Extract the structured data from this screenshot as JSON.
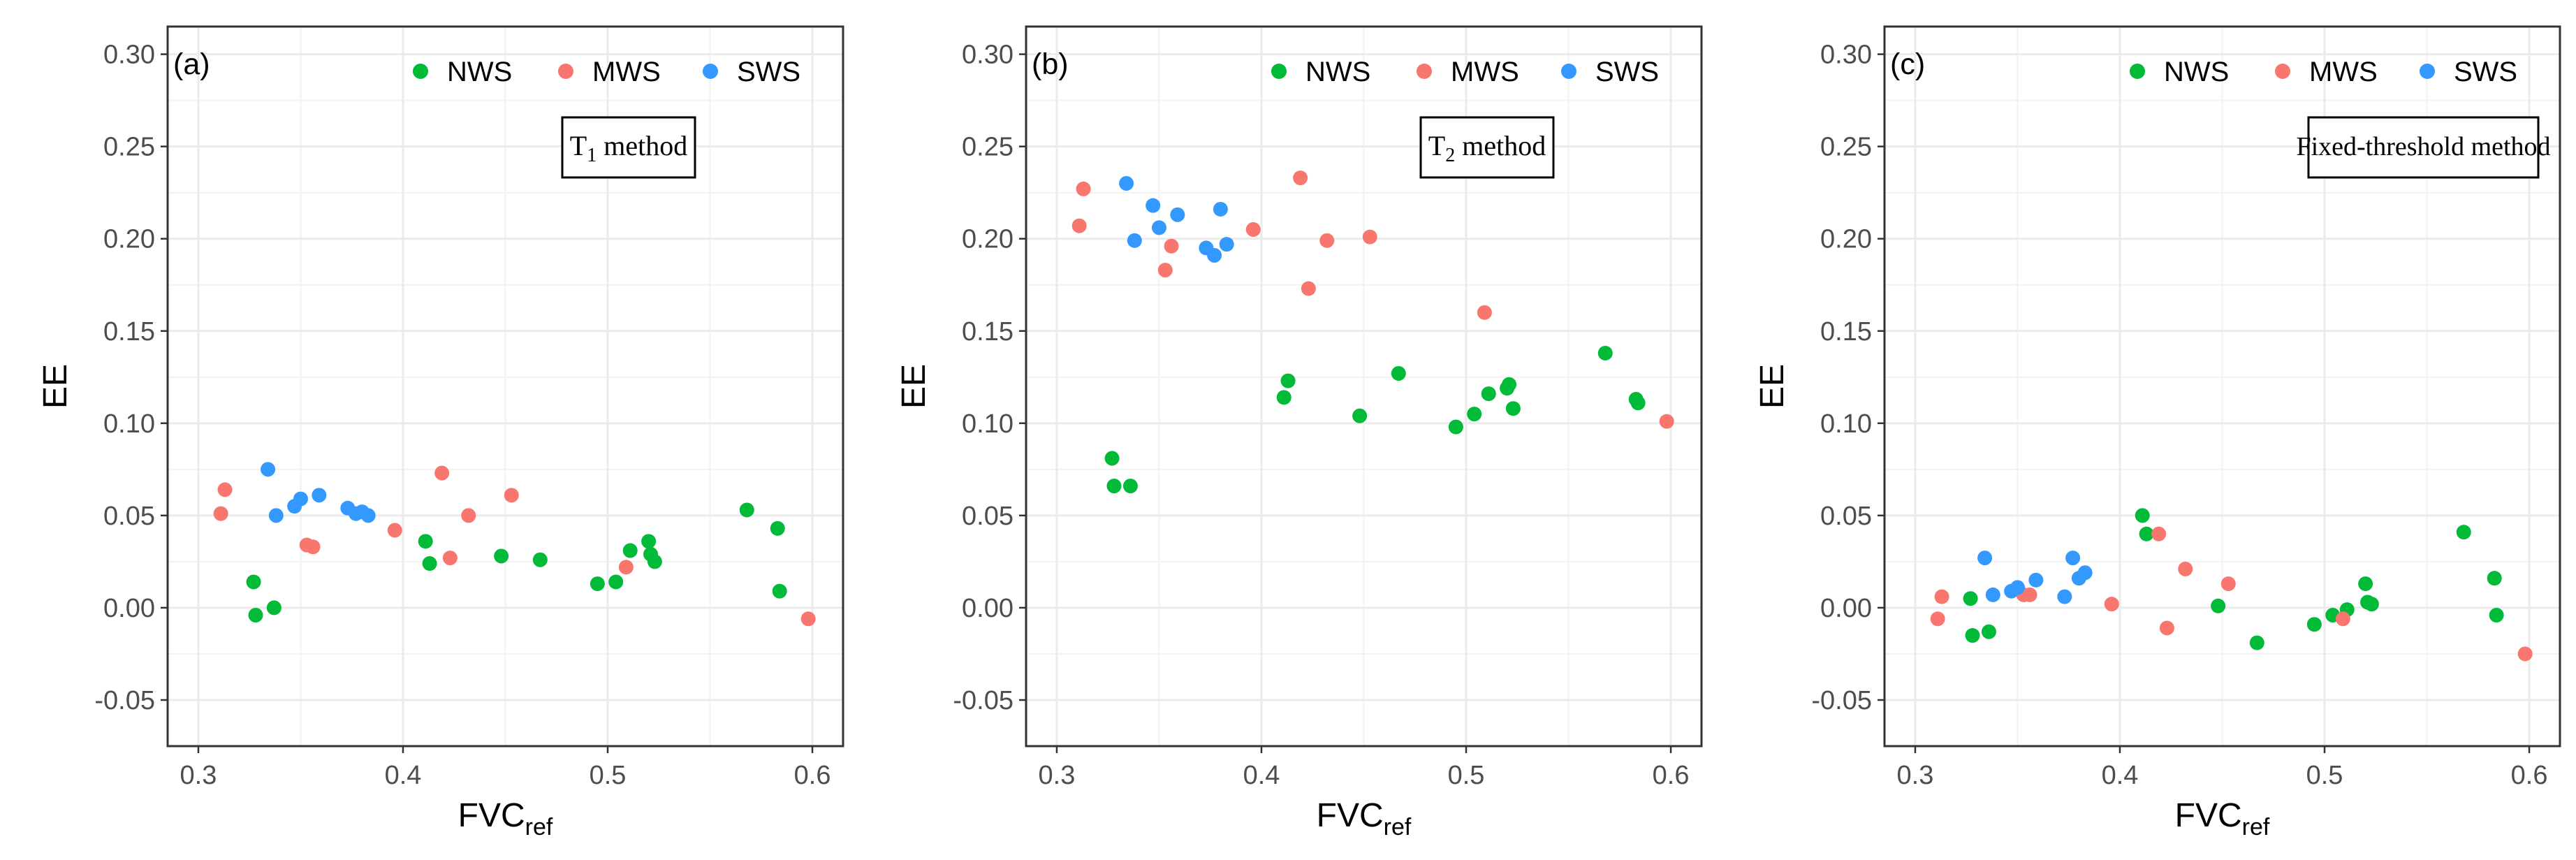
{
  "colors": {
    "NWS": "#00BA38",
    "MWS": "#F8766D",
    "SWS": "#3399FF",
    "grid": "#ebebeb",
    "frame": "#333333",
    "axis_text": "#4d4d4d"
  },
  "chart_data": [
    {
      "type": "scatter",
      "panel_label": "(a)",
      "method_label_main": "T",
      "method_label_sub": "1",
      "method_label_rest": " method",
      "xlabel_main": "FVC",
      "xlabel_sub": "ref",
      "ylabel": "EE",
      "xlim": [
        0.285,
        0.615
      ],
      "ylim": [
        -0.075,
        0.315
      ],
      "xticks": [
        0.3,
        0.4,
        0.5,
        0.6
      ],
      "xtick_labels": [
        "0.3",
        "0.4",
        "0.5",
        "0.6"
      ],
      "yticks": [
        -0.05,
        0.0,
        0.05,
        0.1,
        0.15,
        0.2,
        0.25,
        0.3
      ],
      "ytick_labels": [
        "-0.05",
        "0.00",
        "0.05",
        "0.10",
        "0.15",
        "0.20",
        "0.25",
        "0.30"
      ],
      "legend_position": "top-right",
      "series": [
        {
          "name": "NWS",
          "points": [
            [
              0.327,
              0.014
            ],
            [
              0.328,
              -0.004
            ],
            [
              0.337,
              0.0
            ],
            [
              0.411,
              0.036
            ],
            [
              0.413,
              0.024
            ],
            [
              0.448,
              0.028
            ],
            [
              0.467,
              0.026
            ],
            [
              0.495,
              0.013
            ],
            [
              0.504,
              0.014
            ],
            [
              0.511,
              0.031
            ],
            [
              0.52,
              0.036
            ],
            [
              0.521,
              0.029
            ],
            [
              0.523,
              0.025
            ],
            [
              0.568,
              0.053
            ],
            [
              0.583,
              0.043
            ],
            [
              0.584,
              0.009
            ]
          ]
        },
        {
          "name": "MWS",
          "points": [
            [
              0.311,
              0.051
            ],
            [
              0.313,
              0.064
            ],
            [
              0.353,
              0.034
            ],
            [
              0.356,
              0.033
            ],
            [
              0.396,
              0.042
            ],
            [
              0.419,
              0.073
            ],
            [
              0.423,
              0.027
            ],
            [
              0.432,
              0.05
            ],
            [
              0.453,
              0.061
            ],
            [
              0.509,
              0.022
            ],
            [
              0.598,
              -0.006
            ]
          ]
        },
        {
          "name": "SWS",
          "points": [
            [
              0.334,
              0.075
            ],
            [
              0.338,
              0.05
            ],
            [
              0.347,
              0.055
            ],
            [
              0.35,
              0.059
            ],
            [
              0.359,
              0.061
            ],
            [
              0.373,
              0.054
            ],
            [
              0.377,
              0.051
            ],
            [
              0.38,
              0.052
            ],
            [
              0.383,
              0.05
            ]
          ]
        }
      ]
    },
    {
      "type": "scatter",
      "panel_label": "(b)",
      "method_label_main": "T",
      "method_label_sub": "2",
      "method_label_rest": " method",
      "xlabel_main": "FVC",
      "xlabel_sub": "ref",
      "ylabel": "EE",
      "xlim": [
        0.285,
        0.615
      ],
      "ylim": [
        -0.075,
        0.315
      ],
      "xticks": [
        0.3,
        0.4,
        0.5,
        0.6
      ],
      "xtick_labels": [
        "0.3",
        "0.4",
        "0.5",
        "0.6"
      ],
      "yticks": [
        -0.05,
        0.0,
        0.05,
        0.1,
        0.15,
        0.2,
        0.25,
        0.3
      ],
      "ytick_labels": [
        "-0.05",
        "0.00",
        "0.05",
        "0.10",
        "0.15",
        "0.20",
        "0.25",
        "0.30"
      ],
      "legend_position": "top-right",
      "series": [
        {
          "name": "NWS",
          "points": [
            [
              0.327,
              0.081
            ],
            [
              0.328,
              0.066
            ],
            [
              0.336,
              0.066
            ],
            [
              0.411,
              0.114
            ],
            [
              0.413,
              0.123
            ],
            [
              0.448,
              0.104
            ],
            [
              0.467,
              0.127
            ],
            [
              0.495,
              0.098
            ],
            [
              0.504,
              0.105
            ],
            [
              0.511,
              0.116
            ],
            [
              0.52,
              0.119
            ],
            [
              0.521,
              0.121
            ],
            [
              0.523,
              0.108
            ],
            [
              0.568,
              0.138
            ],
            [
              0.583,
              0.113
            ],
            [
              0.584,
              0.111
            ]
          ]
        },
        {
          "name": "MWS",
          "points": [
            [
              0.311,
              0.207
            ],
            [
              0.313,
              0.227
            ],
            [
              0.353,
              0.183
            ],
            [
              0.356,
              0.196
            ],
            [
              0.396,
              0.205
            ],
            [
              0.419,
              0.233
            ],
            [
              0.423,
              0.173
            ],
            [
              0.432,
              0.199
            ],
            [
              0.453,
              0.201
            ],
            [
              0.509,
              0.16
            ],
            [
              0.598,
              0.101
            ]
          ]
        },
        {
          "name": "SWS",
          "points": [
            [
              0.334,
              0.23
            ],
            [
              0.338,
              0.199
            ],
            [
              0.347,
              0.218
            ],
            [
              0.35,
              0.206
            ],
            [
              0.359,
              0.213
            ],
            [
              0.373,
              0.195
            ],
            [
              0.377,
              0.191
            ],
            [
              0.38,
              0.216
            ],
            [
              0.383,
              0.197
            ]
          ]
        }
      ]
    },
    {
      "type": "scatter",
      "panel_label": "(c)",
      "method_label_main": "Fixed-threshold method",
      "method_label_sub": "",
      "method_label_rest": "",
      "xlabel_main": "FVC",
      "xlabel_sub": "ref",
      "ylabel": "EE",
      "xlim": [
        0.285,
        0.615
      ],
      "ylim": [
        -0.075,
        0.315
      ],
      "xticks": [
        0.3,
        0.4,
        0.5,
        0.6
      ],
      "xtick_labels": [
        "0.3",
        "0.4",
        "0.5",
        "0.6"
      ],
      "yticks": [
        -0.05,
        0.0,
        0.05,
        0.1,
        0.15,
        0.2,
        0.25,
        0.3
      ],
      "ytick_labels": [
        "-0.05",
        "0.00",
        "0.05",
        "0.10",
        "0.15",
        "0.20",
        "0.25",
        "0.30"
      ],
      "legend_position": "top-right",
      "series": [
        {
          "name": "NWS",
          "points": [
            [
              0.327,
              0.005
            ],
            [
              0.328,
              -0.015
            ],
            [
              0.336,
              -0.013
            ],
            [
              0.411,
              0.05
            ],
            [
              0.413,
              0.04
            ],
            [
              0.448,
              0.001
            ],
            [
              0.467,
              -0.019
            ],
            [
              0.495,
              -0.009
            ],
            [
              0.504,
              -0.004
            ],
            [
              0.511,
              -0.001
            ],
            [
              0.52,
              0.013
            ],
            [
              0.521,
              0.003
            ],
            [
              0.523,
              0.002
            ],
            [
              0.568,
              0.041
            ],
            [
              0.583,
              0.016
            ],
            [
              0.584,
              -0.004
            ]
          ]
        },
        {
          "name": "MWS",
          "points": [
            [
              0.311,
              -0.006
            ],
            [
              0.313,
              0.006
            ],
            [
              0.353,
              0.007
            ],
            [
              0.356,
              0.007
            ],
            [
              0.396,
              0.002
            ],
            [
              0.419,
              0.04
            ],
            [
              0.423,
              -0.011
            ],
            [
              0.432,
              0.021
            ],
            [
              0.453,
              0.013
            ],
            [
              0.509,
              -0.006
            ],
            [
              0.598,
              -0.025
            ]
          ]
        },
        {
          "name": "SWS",
          "points": [
            [
              0.334,
              0.027
            ],
            [
              0.338,
              0.007
            ],
            [
              0.347,
              0.009
            ],
            [
              0.35,
              0.011
            ],
            [
              0.359,
              0.015
            ],
            [
              0.373,
              0.006
            ],
            [
              0.377,
              0.027
            ],
            [
              0.38,
              0.016
            ],
            [
              0.383,
              0.019
            ]
          ]
        }
      ]
    }
  ]
}
